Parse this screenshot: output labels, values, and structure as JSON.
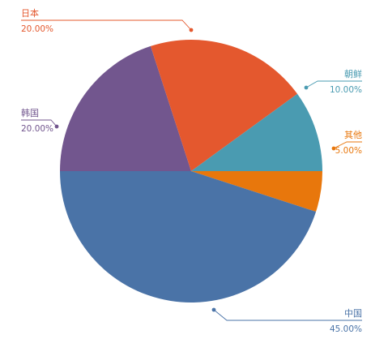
{
  "chart_data": {
    "type": "pie",
    "slices": [
      {
        "name": "其他",
        "value": 5,
        "percent_label": "5.00%",
        "color": "#e8770c"
      },
      {
        "name": "中国",
        "value": 45,
        "percent_label": "45.00%",
        "color": "#4a73a7"
      },
      {
        "name": "韩国",
        "value": 20,
        "percent_label": "20.00%",
        "color": "#72568e"
      },
      {
        "name": "日本",
        "value": 20,
        "percent_label": "20.00%",
        "color": "#e4582e"
      },
      {
        "name": "朝鲜",
        "value": 10,
        "percent_label": "10.00%",
        "color": "#4a9bb1"
      }
    ],
    "start_direction": "right",
    "direction": "clockwise",
    "legend": "none"
  }
}
